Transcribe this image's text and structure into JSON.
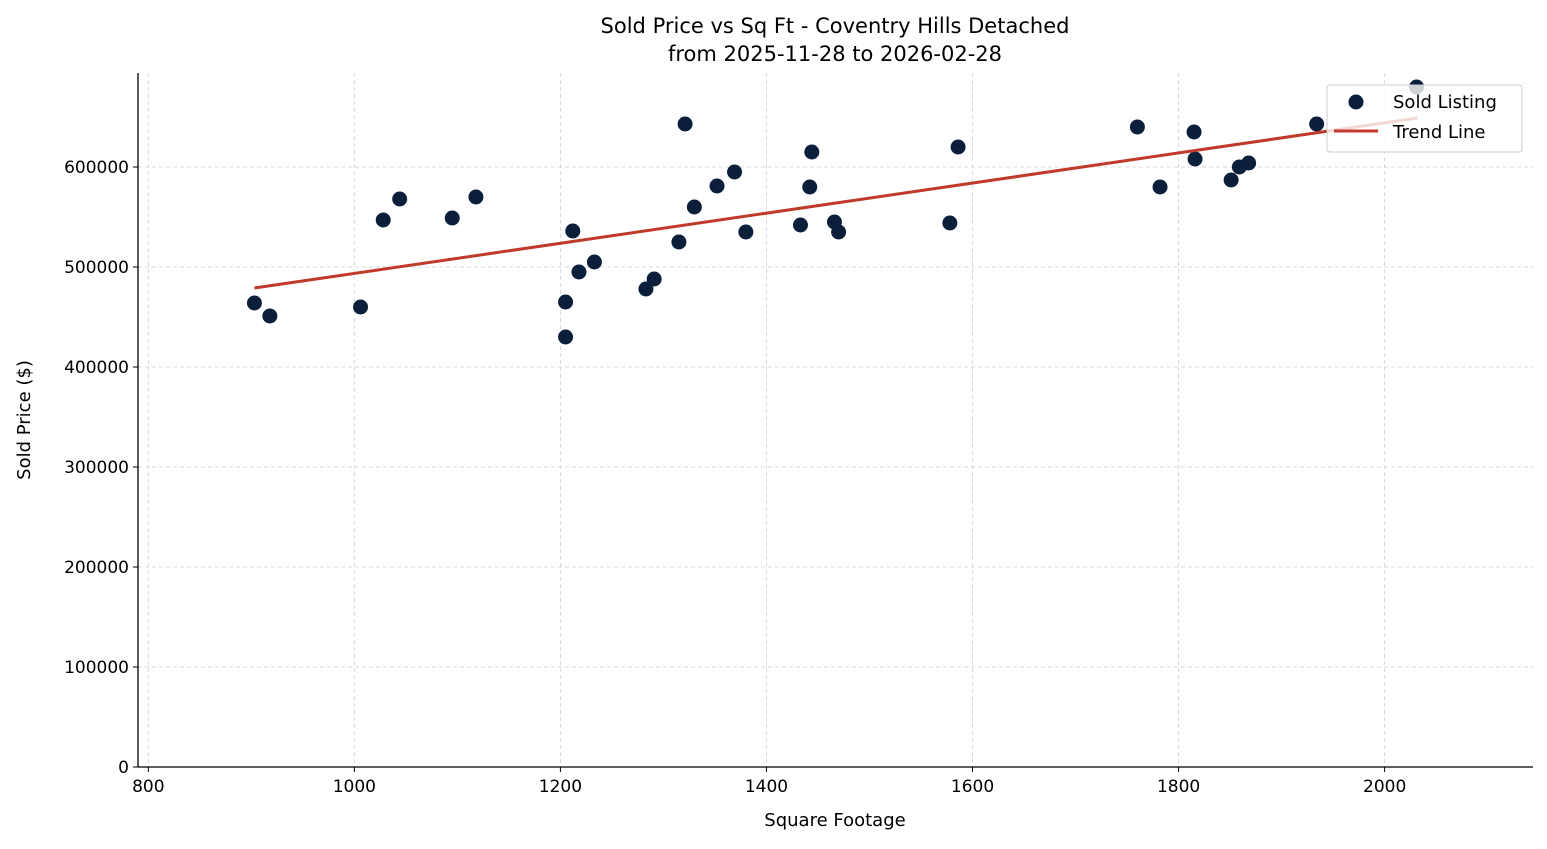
{
  "chart_data": {
    "type": "scatter",
    "title": "Sold Price vs Sq Ft - Coventry Hills Detached",
    "subtitle": "from 2025-11-28 to 2026-02-28",
    "xlabel": "Square Footage",
    "ylabel": "Sold Price ($)",
    "xlim": [
      790,
      2144
    ],
    "ylim": [
      0,
      694000
    ],
    "xticks": [
      800,
      1000,
      1200,
      1400,
      1600,
      1800,
      2000
    ],
    "yticks": [
      0,
      100000,
      200000,
      300000,
      400000,
      500000,
      600000
    ],
    "grid": true,
    "legend_position": "top-right",
    "series": [
      {
        "name": "Sold Listing",
        "type": "scatter",
        "color": "#0b1f3a",
        "points": [
          [
            903,
            464000
          ],
          [
            918,
            451000
          ],
          [
            1006,
            460000
          ],
          [
            1028,
            547000
          ],
          [
            1044,
            568000
          ],
          [
            1095,
            549000
          ],
          [
            1118,
            570000
          ],
          [
            1205,
            465000
          ],
          [
            1205,
            430000
          ],
          [
            1212,
            536000
          ],
          [
            1218,
            495000
          ],
          [
            1233,
            505000
          ],
          [
            1283,
            478000
          ],
          [
            1291,
            488000
          ],
          [
            1315,
            525000
          ],
          [
            1321,
            643000
          ],
          [
            1330,
            560000
          ],
          [
            1352,
            581000
          ],
          [
            1369,
            595000
          ],
          [
            1380,
            535000
          ],
          [
            1433,
            542000
          ],
          [
            1442,
            580000
          ],
          [
            1444,
            615000
          ],
          [
            1466,
            545000
          ],
          [
            1470,
            535000
          ],
          [
            1578,
            544000
          ],
          [
            1586,
            620000
          ],
          [
            1760,
            640000
          ],
          [
            1782,
            580000
          ],
          [
            1815,
            635000
          ],
          [
            1816,
            608000
          ],
          [
            1851,
            587000
          ],
          [
            1859,
            600000
          ],
          [
            1868,
            604000
          ],
          [
            1934,
            643000
          ],
          [
            2031,
            680000
          ]
        ]
      },
      {
        "name": "Trend Line",
        "type": "line",
        "color": "#c0392b",
        "points": [
          [
            903,
            479000
          ],
          [
            2032,
            649000
          ]
        ]
      }
    ]
  }
}
